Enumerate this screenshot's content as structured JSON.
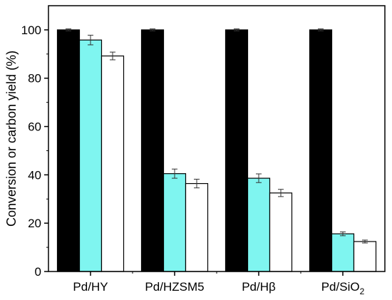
{
  "chart_data": {
    "type": "bar",
    "title": "",
    "xlabel": "",
    "ylabel": "Conversion or carbon yield (%)",
    "ylim": [
      0,
      110
    ],
    "yticks": [
      0,
      20,
      40,
      60,
      80,
      100
    ],
    "categories": [
      "Pd/HY",
      "Pd/HZSM5",
      "Pd/Hβ",
      "Pd/SiO2"
    ],
    "category_display": [
      {
        "main": "Pd/HY",
        "sub": ""
      },
      {
        "main": "Pd/HZSM5",
        "sub": ""
      },
      {
        "main": "Pd/Hβ",
        "sub": ""
      },
      {
        "main": "Pd/SiO",
        "sub": "2"
      }
    ],
    "series": [
      {
        "color": "#000000",
        "values": [
          100,
          100,
          100,
          100
        ],
        "errors": [
          0.4,
          0.4,
          0.4,
          0.4
        ]
      },
      {
        "color": "#7ff5f0",
        "values": [
          95.8,
          40.5,
          38.6,
          15.6
        ],
        "errors": [
          2.0,
          1.9,
          1.8,
          0.8
        ]
      },
      {
        "color": "#ffffff",
        "values": [
          89.2,
          36.4,
          32.5,
          12.4
        ],
        "errors": [
          1.6,
          1.8,
          1.5,
          0.6
        ]
      }
    ],
    "grid": false,
    "legend": "none"
  }
}
